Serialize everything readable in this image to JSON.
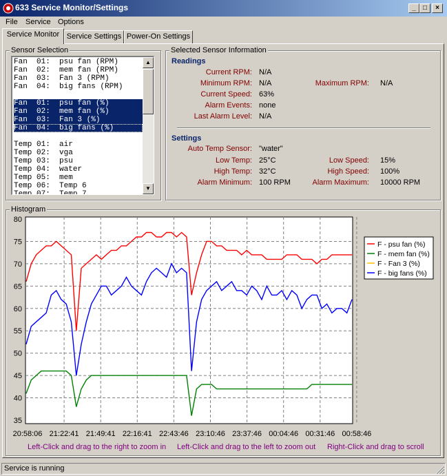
{
  "window": {
    "title": "633 Service Monitor/Settings",
    "buttons": [
      "_",
      "□",
      "×"
    ]
  },
  "menu": [
    {
      "label": "File",
      "underline": "F"
    },
    {
      "label": "Service",
      "underline": "S"
    },
    {
      "label": "Options",
      "underline": "O"
    }
  ],
  "tabs": [
    "Service Monitor",
    "Service Settings",
    "Power-On Settings"
  ],
  "sensor_selection": {
    "title": "Sensor Selection",
    "items": [
      "Fan  01:  psu fan (RPM)",
      "Fan  02:  mem fan (RPM)",
      "Fan  03:  Fan 3 (RPM)",
      "Fan  04:  big fans (RPM)",
      "",
      "Fan  01:  psu fan (%)",
      "Fan  02:  mem fan (%)",
      "Fan  03:  Fan 3 (%)",
      "Fan  04:  big fans (%)",
      "",
      "Temp 01:  air",
      "Temp 02:  vga",
      "Temp 03:  psu",
      "Temp 04:  water",
      "Temp 05:  mem",
      "Temp 06:  Temp 6",
      "Temp 07:  Temp 7"
    ],
    "selected": [
      5,
      6,
      7,
      8
    ]
  },
  "info": {
    "title": "Selected Sensor Information",
    "readings_title": "Readings",
    "readings": [
      {
        "label": "Current RPM:",
        "value": "N/A"
      },
      {
        "label": "Minimum RPM:",
        "value": "N/A"
      },
      {
        "label": "Current Speed:",
        "value": "63%"
      },
      {
        "label": "Alarm Events:",
        "value": "none"
      },
      {
        "label": "Last Alarm Level:",
        "value": "N/A"
      }
    ],
    "max_rpm": {
      "label": "Maximum RPM:",
      "value": "N/A"
    },
    "settings_title": "Settings",
    "auto_temp": {
      "label": "Auto Temp Sensor:",
      "value": "\"water\""
    },
    "settings_left": [
      {
        "label": "Low Temp:",
        "value": "25°C"
      },
      {
        "label": "High Temp:",
        "value": "32°C"
      },
      {
        "label": "Alarm Minimum:",
        "value": "100 RPM"
      }
    ],
    "settings_right": [
      {
        "label": "Low Speed:",
        "value": "15%"
      },
      {
        "label": "High Speed:",
        "value": "100%"
      },
      {
        "label": "Alarm Maximum:",
        "value": "10000 RPM"
      }
    ]
  },
  "histogram": {
    "title": "Histogram",
    "hints": [
      "Left-Click and drag to the right to zoom in",
      "Left-Click and drag to the left to zoom out",
      "Right-Click and drag to scroll"
    ]
  },
  "chart_data": {
    "type": "line",
    "ylim": [
      35,
      80
    ],
    "yticks": [
      "80",
      "75",
      "70",
      "65",
      "60",
      "55",
      "50",
      "45",
      "40",
      "35"
    ],
    "xticks": [
      "20:58:06",
      "21:22:41",
      "21:49:41",
      "22:16:41",
      "22:43:46",
      "23:10:46",
      "23:37:46",
      "00:04:46",
      "00:31:46",
      "00:58:46"
    ],
    "grid": true,
    "legend_position": "right",
    "series": [
      {
        "name": "F - psu fan (%)",
        "color": "#ff0000",
        "values": [
          66,
          70,
          72,
          73,
          74,
          74,
          75,
          74,
          73,
          72,
          55,
          69,
          70,
          71,
          72,
          71,
          72,
          73,
          73,
          74,
          74,
          75,
          76,
          76,
          77,
          77,
          76,
          76,
          77,
          77,
          76,
          77,
          76,
          63,
          68,
          72,
          75,
          75,
          74,
          74,
          73,
          73,
          73,
          72,
          73,
          72,
          72,
          72,
          71,
          71,
          71,
          71,
          72,
          72,
          72,
          71,
          71,
          71,
          70,
          71,
          71,
          72,
          72,
          72,
          72,
          72
        ]
      },
      {
        "name": "F - mem fan (%)",
        "color": "#008000",
        "values": [
          41,
          44,
          45,
          46,
          46,
          46,
          46,
          46,
          46,
          45,
          38,
          42,
          44,
          45,
          45,
          45,
          45,
          45,
          45,
          45,
          45,
          45,
          45,
          45,
          45,
          45,
          45,
          45,
          45,
          45,
          45,
          45,
          45,
          36,
          42,
          43,
          43,
          43,
          42,
          42,
          42,
          42,
          42,
          42,
          42,
          42,
          42,
          42,
          42,
          42,
          42,
          42,
          42,
          42,
          42,
          42,
          42,
          43,
          43,
          43,
          43,
          43,
          43,
          43,
          43,
          43
        ]
      },
      {
        "name": "F - Fan 3 (%)",
        "color": "#ffc000",
        "values": []
      },
      {
        "name": "F - big fans (%)",
        "color": "#0000ff",
        "values": [
          52,
          56,
          57,
          58,
          59,
          63,
          64,
          62,
          61,
          57,
          45,
          52,
          57,
          61,
          63,
          65,
          65,
          63,
          64,
          65,
          67,
          65,
          64,
          63,
          66,
          68,
          69,
          68,
          67,
          70,
          68,
          69,
          68,
          46,
          57,
          62,
          64,
          65,
          66,
          64,
          65,
          66,
          64,
          64,
          63,
          65,
          64,
          62,
          65,
          63,
          63,
          64,
          62,
          64,
          63,
          60,
          62,
          63,
          63,
          60,
          61,
          59,
          60,
          60,
          59,
          62
        ]
      }
    ]
  },
  "status": {
    "text": "Service is running"
  }
}
